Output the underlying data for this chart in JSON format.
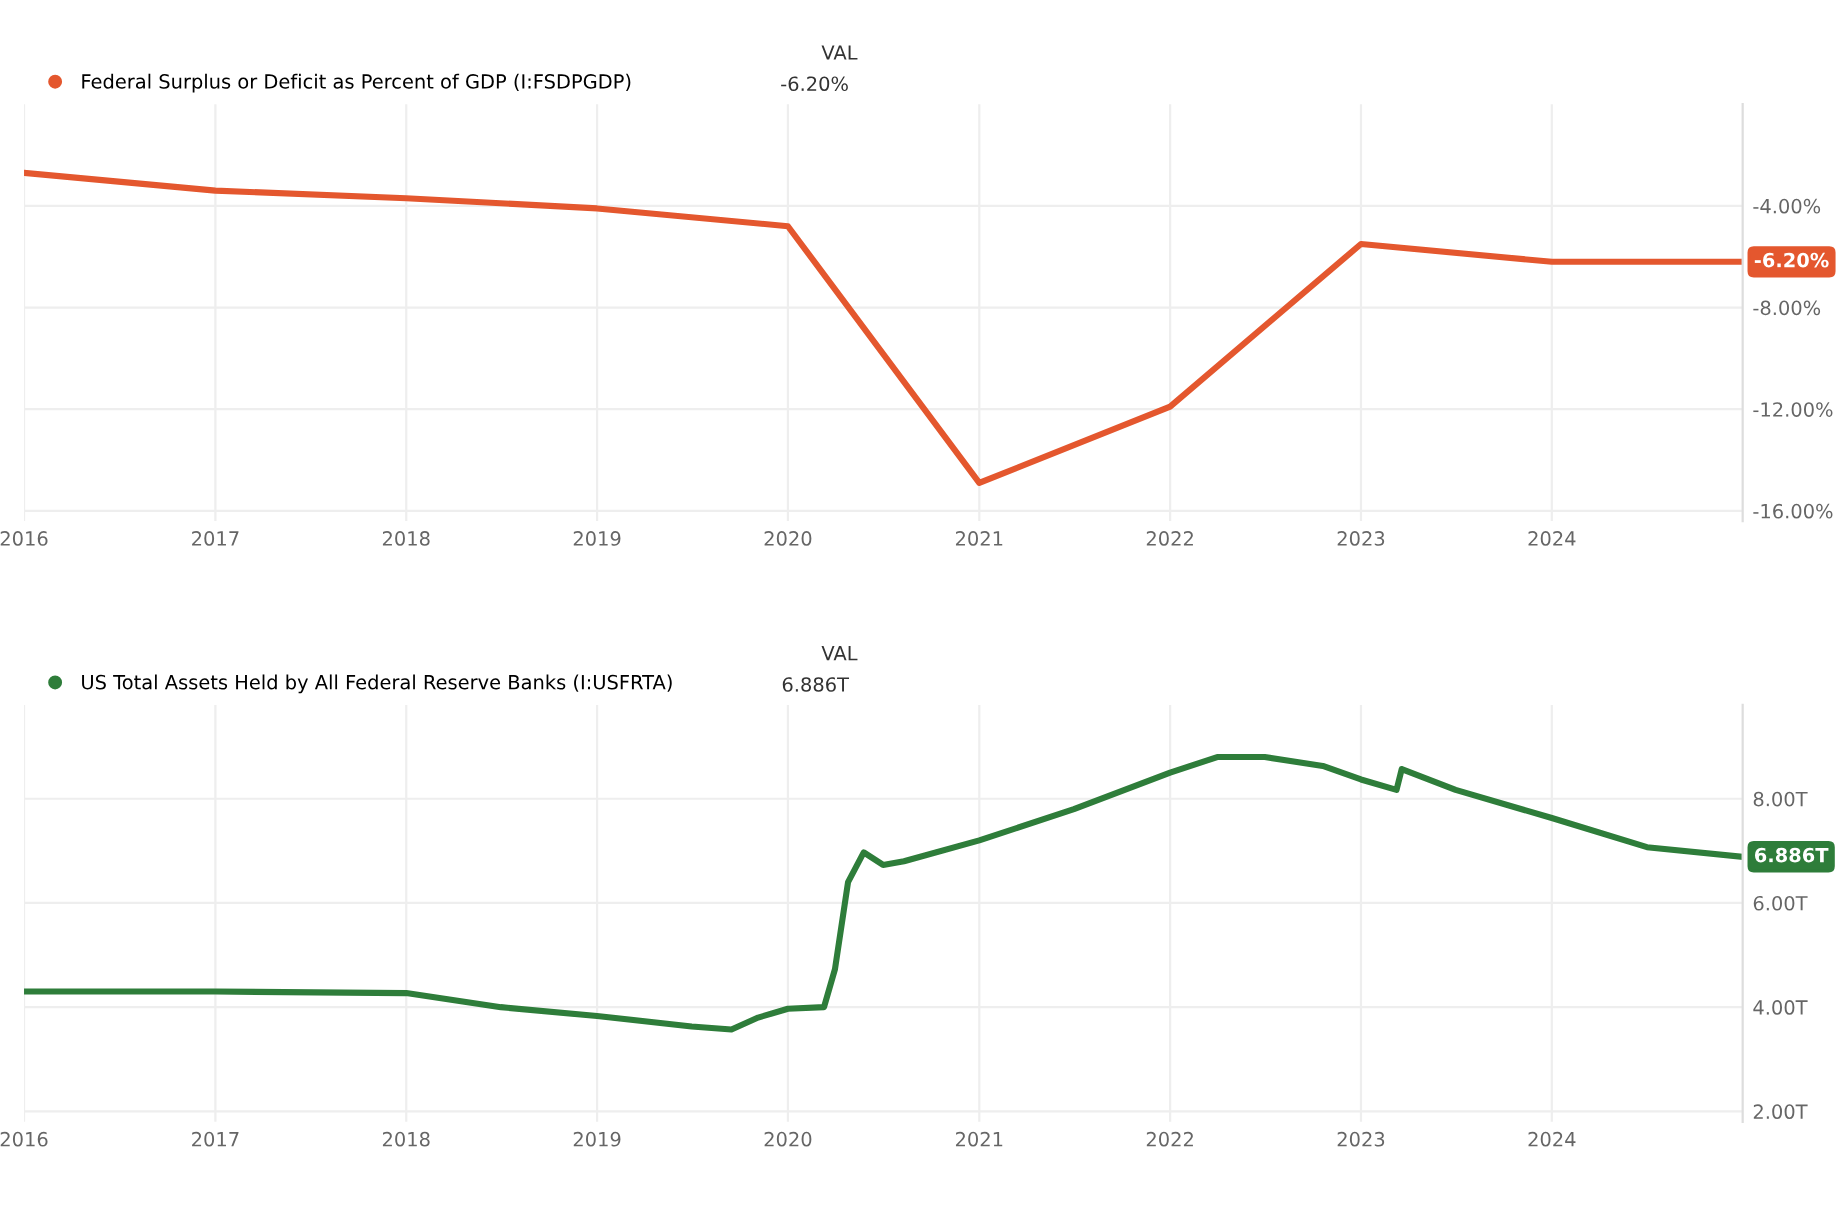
{
  "chart_data": [
    {
      "type": "line",
      "x": [
        "2016-01-01",
        "2017-01-01",
        "2018-01-01",
        "2019-01-01",
        "2020-01-01",
        "2021-01-01",
        "2022-01-01",
        "2023-01-01",
        "2024-01-01",
        "2024-12-31"
      ],
      "series": [
        {
          "name": "Federal Surplus or Deficit as Percent of GDP (I:FSDPGDP)",
          "color": "#e4572e",
          "values": [
            -2.7,
            -3.4,
            -3.7,
            -4.1,
            -4.8,
            -14.9,
            -11.9,
            -5.5,
            -6.2,
            -6.2
          ]
        }
      ],
      "xlim": [
        "2016-01-01",
        "2024-12-31"
      ],
      "xticks": [
        "2016",
        "2017",
        "2018",
        "2019",
        "2020",
        "2021",
        "2022",
        "2023",
        "2024"
      ],
      "ylim": [
        -16.4,
        0
      ],
      "yticks": [
        {
          "value": -4,
          "label": "-4.00%"
        },
        {
          "value": -8,
          "label": "-8.00%"
        },
        {
          "value": -12,
          "label": "-12.00%"
        },
        {
          "value": -16,
          "label": "-16.00%"
        }
      ],
      "grid": true,
      "legend": "top left",
      "marker": "none",
      "line_style": "solid",
      "annotations": [
        "VAL",
        "-6.20%",
        {
          "text": "-6.20%",
          "x": "2024-12-31",
          "y": -6.2
        }
      ]
    },
    {
      "type": "line",
      "x": [
        "2016-01-01",
        "2017-01-01",
        "2018-01-01",
        "2018-07-01",
        "2019-01-01",
        "2019-07-01",
        "2019-09-15",
        "2019-11-05",
        "2020-01-01",
        "2020-03-10",
        "2020-03-31",
        "2020-04-25",
        "2020-05-25",
        "2020-07-01",
        "2020-08-10",
        "2021-01-01",
        "2021-07-01",
        "2022-01-01",
        "2022-04-01",
        "2022-07-01",
        "2022-10-20",
        "2023-01-01",
        "2023-03-10",
        "2023-03-20",
        "2023-07-01",
        "2024-01-01",
        "2024-07-01",
        "2024-12-31"
      ],
      "series": [
        {
          "name": "US Total Assets Held by All Federal Reserve Banks (I:USFRTA)",
          "color": "#2e7d3a",
          "values": [
            4.3,
            4.3,
            4.27,
            4.0,
            3.83,
            3.63,
            3.57,
            3.8,
            3.97,
            4.0,
            4.73,
            6.4,
            6.97,
            6.73,
            6.8,
            7.2,
            7.8,
            8.5,
            8.8,
            8.8,
            8.63,
            8.37,
            8.17,
            8.57,
            8.17,
            7.63,
            7.07,
            6.886
          ]
        }
      ],
      "xlim": [
        "2016-01-01",
        "2024-12-31"
      ],
      "xticks": [
        "2016",
        "2017",
        "2018",
        "2019",
        "2020",
        "2021",
        "2022",
        "2023",
        "2024"
      ],
      "ylim": [
        1.8,
        9.8
      ],
      "yticks": [
        {
          "value": 2,
          "label": "2.00T"
        },
        {
          "value": 4,
          "label": "4.00T"
        },
        {
          "value": 6,
          "label": "6.00T"
        },
        {
          "value": 8,
          "label": "8.00T"
        }
      ],
      "grid": true,
      "legend": "top left",
      "marker": "none",
      "line_style": "solid",
      "annotations": [
        "VAL",
        "6.886T",
        {
          "text": "6.886T",
          "x": "2024-12-31",
          "y": 6.886
        }
      ]
    }
  ]
}
